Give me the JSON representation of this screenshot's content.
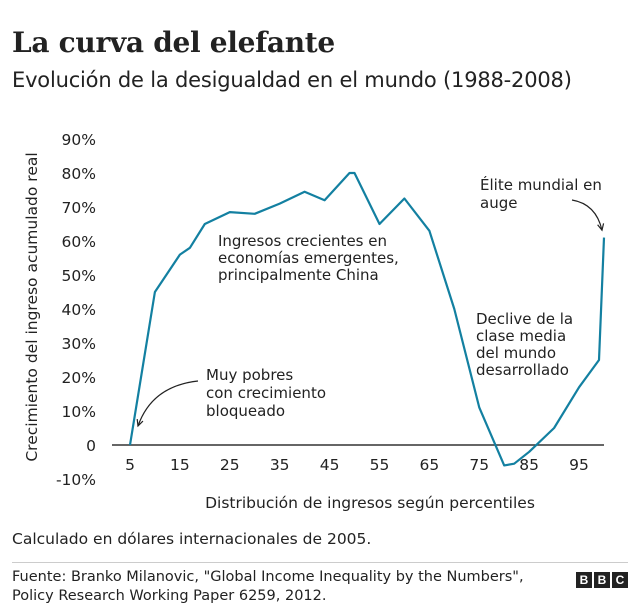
{
  "title": "La curva del elefante",
  "subtitle": "Evolución de la desigualdad en el mundo (1988-2008)",
  "note": "Calculado en dólares internacionales de 2005.",
  "source": "Fuente: Branko Milanovic, \"Global Income Inequality by the Numbers\", Policy Research Working Paper 6259, 2012.",
  "logo": [
    "B",
    "B",
    "C"
  ],
  "colors": {
    "line": "#1380A1",
    "text": "#222222",
    "zero_line": "#333333"
  },
  "chart_data": {
    "type": "line",
    "xlabel": "Distribución de ingresos según percentiles",
    "ylabel": "Crecimiento del ingreso acumulado real",
    "xlim": [
      5,
      100
    ],
    "ylim": [
      -10,
      90
    ],
    "x_ticks": [
      5,
      15,
      25,
      35,
      45,
      55,
      65,
      75,
      85,
      95
    ],
    "x_tick_labels": [
      "5",
      "15",
      "25",
      "35",
      "45",
      "55",
      "65",
      "75",
      "85",
      "95"
    ],
    "y_ticks": [
      -10,
      0,
      10,
      20,
      30,
      40,
      50,
      60,
      70,
      80,
      90
    ],
    "y_tick_labels": [
      "-10%",
      "0",
      "10%",
      "20%",
      "30%",
      "40%",
      "50%",
      "60%",
      "70%",
      "80%",
      "90%"
    ],
    "grid": false,
    "series": [
      {
        "x": [
          5,
          10,
          15,
          17,
          20,
          25,
          30,
          35,
          40,
          44,
          49,
          50,
          55,
          60,
          65,
          70,
          75,
          80,
          82,
          85,
          90,
          95,
          99,
          100
        ],
        "values": [
          0,
          45,
          56,
          58,
          65,
          68.5,
          68,
          71,
          74.5,
          72,
          80,
          80,
          65,
          72.5,
          63,
          40,
          11,
          -6,
          -5.5,
          -2,
          5,
          17,
          25,
          61
        ]
      }
    ],
    "annotations": [
      {
        "lines": [
          "Muy pobres",
          "con crecimiento",
          "bloqueado"
        ],
        "point": [
          6,
          5
        ]
      },
      {
        "lines": [
          "Ingresos crecientes en",
          "economías emergentes,",
          "principalmente China"
        ]
      },
      {
        "lines": [
          "Élite mundial en",
          "auge"
        ],
        "point": [
          100,
          62
        ]
      },
      {
        "lines": [
          "Declive de la",
          "clase media",
          "del mundo",
          "desarrollado"
        ]
      }
    ]
  }
}
